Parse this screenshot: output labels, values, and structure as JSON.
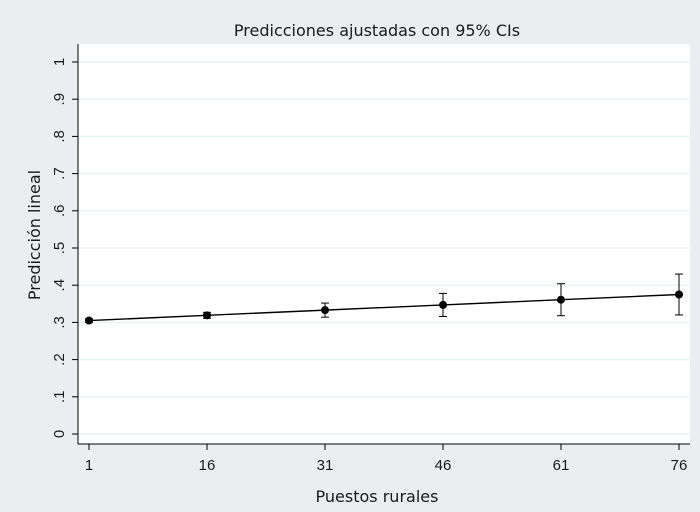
{
  "chart_data": {
    "type": "line",
    "title": "Predicciones ajustadas con 95% CIs",
    "xlabel": "Puestos rurales",
    "ylabel": "Predicción lineal",
    "x": [
      1,
      16,
      31,
      46,
      61,
      76
    ],
    "x_tick_labels": [
      "1",
      "16",
      "31",
      "46",
      "61",
      "76"
    ],
    "y_ticks": [
      0,
      0.1,
      0.2,
      0.3,
      0.4,
      0.5,
      0.6,
      0.7,
      0.8,
      0.9,
      1
    ],
    "y_tick_labels": [
      "0",
      ".1",
      ".2",
      ".3",
      ".4",
      ".5",
      ".6",
      ".7",
      ".8",
      ".9",
      "1"
    ],
    "xlim": [
      1,
      76
    ],
    "ylim": [
      0,
      1
    ],
    "grid": true,
    "series": [
      {
        "values": [
          0.305,
          0.319,
          0.333,
          0.347,
          0.361,
          0.375
        ],
        "ci_lower": [
          0.3,
          0.311,
          0.314,
          0.316,
          0.318,
          0.32
        ],
        "ci_upper": [
          0.31,
          0.327,
          0.352,
          0.378,
          0.404,
          0.43
        ]
      }
    ],
    "colors": {
      "outer_background": "#ebeef0",
      "plot_background": "#ffffff",
      "gridline": "#eaf2f3",
      "series": "#000000"
    }
  }
}
